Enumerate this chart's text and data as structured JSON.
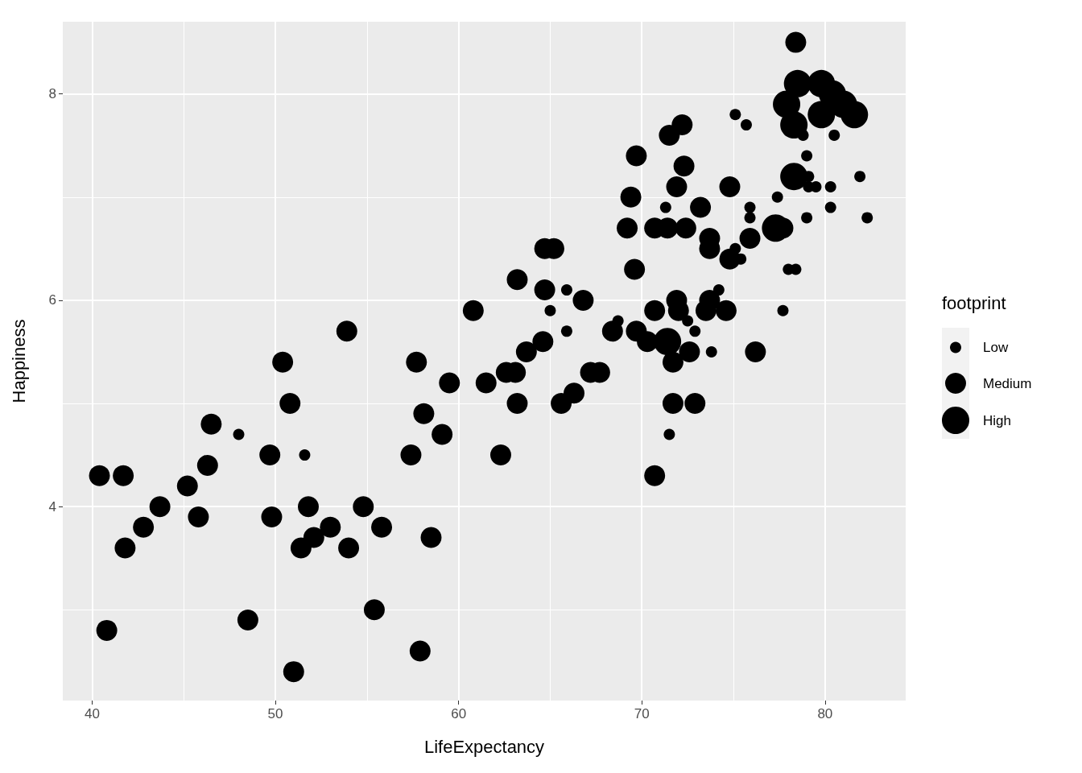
{
  "chart_data": {
    "type": "scatter",
    "xlabel": "LifeExpectancy",
    "ylabel": "Happiness",
    "legend_title": "footprint",
    "legend": "right",
    "grid": true,
    "marker": "circle",
    "xlim": [
      38.4,
      84.4
    ],
    "ylim": [
      2.12,
      8.7
    ],
    "xticks": [
      40,
      {
        "value": 45,
        "label": null
      },
      50,
      {
        "value": 55,
        "label": null
      },
      60,
      {
        "value": 65,
        "label": null
      },
      70,
      {
        "value": 75,
        "label": null
      },
      80
    ],
    "yticks": [
      {
        "value": 3,
        "label": null
      },
      4,
      {
        "value": 5,
        "label": null
      },
      6,
      {
        "value": 7,
        "label": null
      },
      8
    ],
    "series": [
      {
        "name": "Low",
        "color": "#000000",
        "x": [
          48.0,
          51.6,
          65.9,
          65.0,
          65.9,
          68.7,
          71.3,
          72.5,
          72.9,
          74.2,
          73.8,
          71.5,
          75.1,
          75.4,
          75.1,
          75.7,
          75.9,
          75.9,
          77.4,
          77.7,
          78.0,
          78.4,
          78.8,
          79.0,
          79.1,
          79.1,
          79.5,
          79.0,
          80.3,
          80.3,
          80.5,
          81.9,
          82.3
        ],
        "values": [
          4.7,
          4.5,
          6.1,
          5.9,
          5.7,
          5.8,
          6.9,
          5.8,
          5.7,
          6.1,
          5.5,
          4.7,
          6.5,
          6.4,
          7.8,
          7.7,
          6.9,
          6.8,
          7.0,
          5.9,
          6.3,
          6.3,
          7.6,
          7.4,
          7.2,
          7.1,
          7.1,
          6.8,
          7.1,
          6.9,
          7.6,
          7.2,
          6.8
        ]
      },
      {
        "name": "Medium",
        "color": "#000000",
        "x": [
          40.4,
          41.7,
          40.8,
          41.8,
          42.8,
          43.7,
          45.2,
          45.8,
          46.3,
          46.5,
          48.5,
          49.7,
          49.8,
          50.4,
          50.8,
          51.0,
          51.4,
          51.8,
          52.1,
          53.0,
          53.9,
          54.0,
          54.8,
          55.4,
          55.8,
          57.4,
          57.7,
          57.9,
          58.1,
          58.5,
          59.1,
          59.5,
          60.8,
          61.5,
          62.3,
          62.6,
          63.1,
          63.2,
          63.2,
          63.7,
          64.6,
          64.7,
          64.7,
          65.2,
          65.6,
          66.3,
          66.8,
          67.2,
          67.7,
          68.4,
          69.2,
          69.4,
          69.6,
          69.7,
          69.7,
          70.3,
          70.7,
          70.7,
          70.7,
          71.4,
          71.5,
          71.9,
          71.9,
          72.0,
          72.2,
          72.3,
          71.7,
          71.7,
          72.4,
          72.6,
          72.9,
          73.2,
          73.7,
          73.7,
          73.7,
          73.5,
          74.6,
          74.8,
          74.8,
          75.9,
          76.2,
          77.7,
          78.4
        ],
        "values": [
          4.3,
          4.3,
          2.8,
          3.6,
          3.8,
          4.0,
          4.2,
          3.9,
          4.4,
          4.8,
          2.9,
          4.5,
          3.9,
          5.4,
          5.0,
          2.4,
          3.6,
          4.0,
          3.7,
          3.8,
          5.7,
          3.6,
          4.0,
          3.0,
          3.8,
          4.5,
          5.4,
          2.6,
          4.9,
          3.7,
          4.7,
          5.2,
          5.9,
          5.2,
          4.5,
          5.3,
          5.3,
          6.2,
          5.0,
          5.5,
          5.6,
          6.5,
          6.1,
          6.5,
          5.0,
          5.1,
          6.0,
          5.3,
          5.3,
          5.7,
          6.7,
          7.0,
          6.3,
          7.4,
          5.7,
          5.6,
          6.7,
          5.9,
          4.3,
          6.7,
          7.6,
          7.1,
          6.0,
          5.9,
          7.7,
          7.3,
          5.0,
          5.4,
          6.7,
          5.5,
          5.0,
          6.9,
          6.6,
          6.5,
          6.0,
          5.9,
          5.9,
          7.1,
          6.4,
          6.6,
          5.5,
          6.7,
          8.5
        ]
      },
      {
        "name": "High",
        "color": "#000000",
        "x": [
          71.4,
          71.7,
          77.3,
          77.9,
          78.5,
          77.9,
          78.3,
          78.3,
          79.8,
          79.8,
          80.4,
          81.0,
          81.6
        ],
        "values": [
          5.6,
          null,
          6.7,
          null,
          8.1,
          7.9,
          7.7,
          7.2,
          8.1,
          7.8,
          8.0,
          7.9,
          7.8
        ]
      }
    ]
  }
}
